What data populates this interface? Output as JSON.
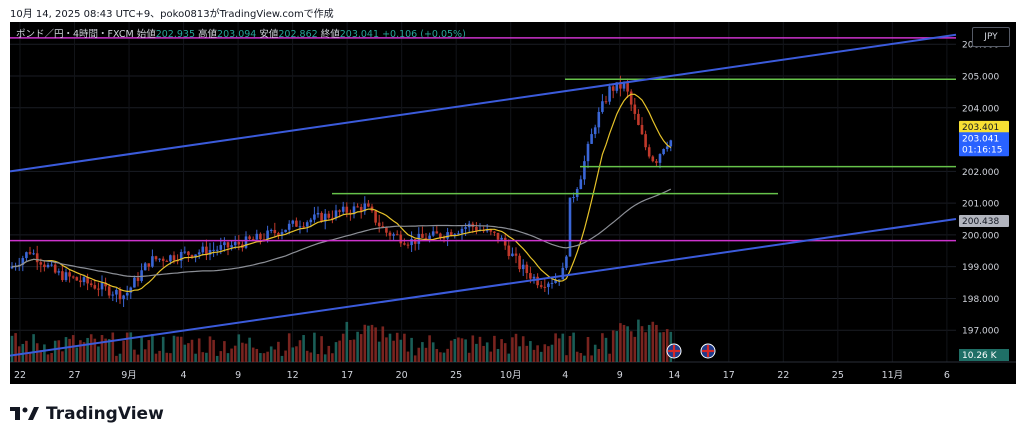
{
  "caption": "10月 14, 2025 08:43 UTC+9、poko0813がTradingView.comで作成",
  "brand": "TradingView",
  "header": {
    "symbol": "ポンド／円・4時間・FXCM",
    "open_label": "始値",
    "open": "202.935",
    "high_label": "高値",
    "high": "203.094",
    "low_label": "安値",
    "low": "202.862",
    "close_label": "終値",
    "close": "203.041",
    "change": "+0.106 (+0.05%)",
    "currency": "JPY"
  },
  "chart_data": {
    "type": "candlestick",
    "ylim": [
      196.0,
      206.7
    ],
    "y_ticks": [
      "206.000",
      "205.000",
      "204.000",
      "202.000",
      "201.000",
      "200.000",
      "199.000",
      "198.000",
      "197.000"
    ],
    "x_ticks": [
      "22",
      "27",
      "9月",
      "4",
      "9",
      "12",
      "17",
      "20",
      "25",
      "10月",
      "4",
      "9",
      "14",
      "17",
      "22",
      "25",
      "11月",
      "6"
    ],
    "price_labels": [
      {
        "value": 203.401,
        "text": "203.401",
        "kind": "ma-short",
        "color": "#f7e033"
      },
      {
        "value": 203.041,
        "text": "203.041",
        "sub": "01:16:15",
        "kind": "last",
        "color": "#2962ff"
      },
      {
        "value": 200.438,
        "text": "200.438",
        "kind": "ma-long",
        "color": "#b2b5be"
      }
    ],
    "volume_label": "10.26 K",
    "horizontal_levels": [
      {
        "price": 206.2,
        "color": "#cc33cc",
        "span": "full"
      },
      {
        "price": 199.82,
        "color": "#cc33cc",
        "span": "full"
      },
      {
        "price": 204.9,
        "color": "#66c24a",
        "span": "recent"
      },
      {
        "price": 202.15,
        "color": "#66c24a",
        "span": "recent"
      },
      {
        "price": 201.3,
        "color": "#66c24a",
        "span": "recent"
      }
    ],
    "trend_lines": [
      {
        "from": [
          0,
          202.0
        ],
        "to": [
          1,
          206.3
        ],
        "color": "#3b5bdb"
      },
      {
        "from": [
          0,
          196.2
        ],
        "to": [
          1,
          200.5
        ],
        "color": "#3b5bdb"
      }
    ],
    "event_flags": [
      "uk-flag",
      "uk-flag"
    ]
  }
}
